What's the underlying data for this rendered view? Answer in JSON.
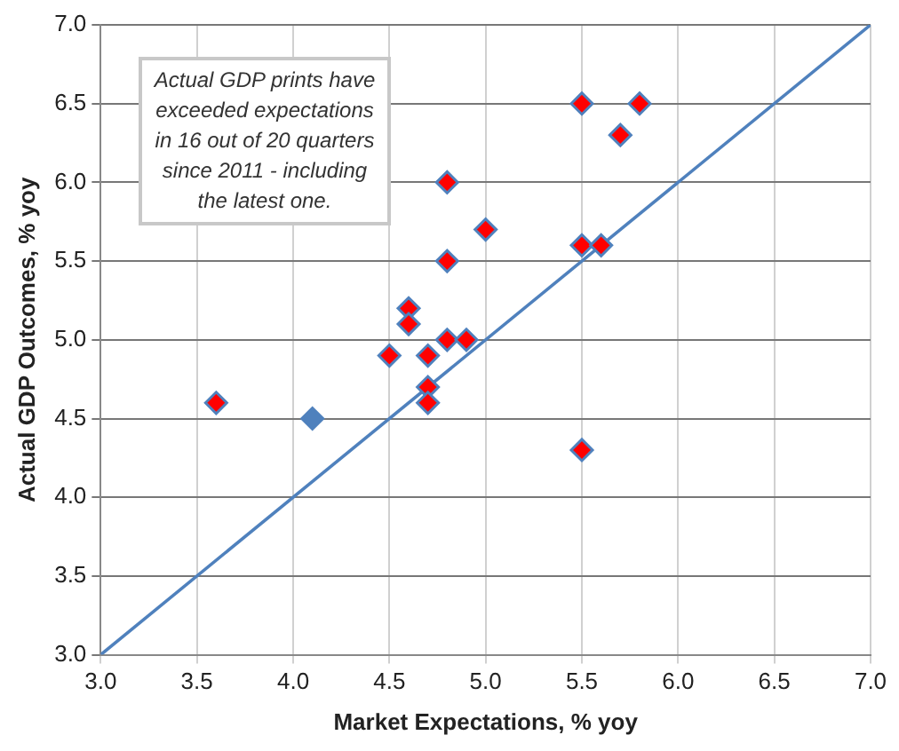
{
  "chart_data": {
    "type": "scatter",
    "xlabel": "Market Expectations, % yoy",
    "ylabel": "Actual GDP Outcomes, % yoy",
    "xlim": [
      3.0,
      7.0
    ],
    "xticks": [
      {
        "value": 3,
        "label": "3.0"
      },
      {
        "value": 3.5,
        "label": "3.5"
      },
      {
        "value": 4,
        "label": "4.0"
      },
      {
        "value": 4.5,
        "label": "4.5"
      },
      {
        "value": 5,
        "label": "5.0"
      },
      {
        "value": 5.5,
        "label": "5.5"
      },
      {
        "value": 6,
        "label": "6.0"
      },
      {
        "value": 6.5,
        "label": "6.5"
      },
      {
        "value": 7,
        "label": "7.0"
      }
    ],
    "ylim": [
      3.0,
      7.0
    ],
    "yticks": [
      {
        "value": 3,
        "label": "3.0"
      },
      {
        "value": 3.5,
        "label": "3.5"
      },
      {
        "value": 4,
        "label": "4.0"
      },
      {
        "value": 4.5,
        "label": "4.5"
      },
      {
        "value": 5,
        "label": "5.0"
      },
      {
        "value": 5.5,
        "label": "5.5"
      },
      {
        "value": 6,
        "label": "6.0"
      },
      {
        "value": 6.5,
        "label": "6.5"
      },
      {
        "value": 7,
        "label": "7.0"
      }
    ],
    "grid": true,
    "legend": false,
    "marker": "diamond",
    "annotations": [
      "Actual GDP prints have exceeded expectations in 16 out of 20 quarters since 2011 - including the latest one."
    ],
    "series": [
      {
        "type": "scatter",
        "color": "#ff0000",
        "x": [
          5.5,
          5.8,
          5.7,
          4.8,
          5.0,
          5.5,
          5.6,
          4.8,
          4.6,
          4.6,
          4.8,
          4.9,
          4.5,
          4.7,
          4.7,
          4.7,
          3.6,
          5.5
        ],
        "values": [
          6.5,
          6.5,
          6.3,
          6.0,
          5.7,
          5.6,
          5.6,
          5.5,
          5.2,
          5.1,
          5.0,
          5.0,
          4.9,
          4.9,
          4.7,
          4.6,
          4.6,
          4.3
        ]
      },
      {
        "type": "scatter",
        "color": "#4f81bd",
        "x": [
          4.1
        ],
        "values": [
          4.5
        ]
      },
      {
        "type": "line",
        "color": "#4f81bd",
        "marker": "none",
        "line_style": "solid",
        "x": [
          3.0,
          7.0
        ],
        "values": [
          3.0,
          7.0
        ]
      }
    ]
  }
}
